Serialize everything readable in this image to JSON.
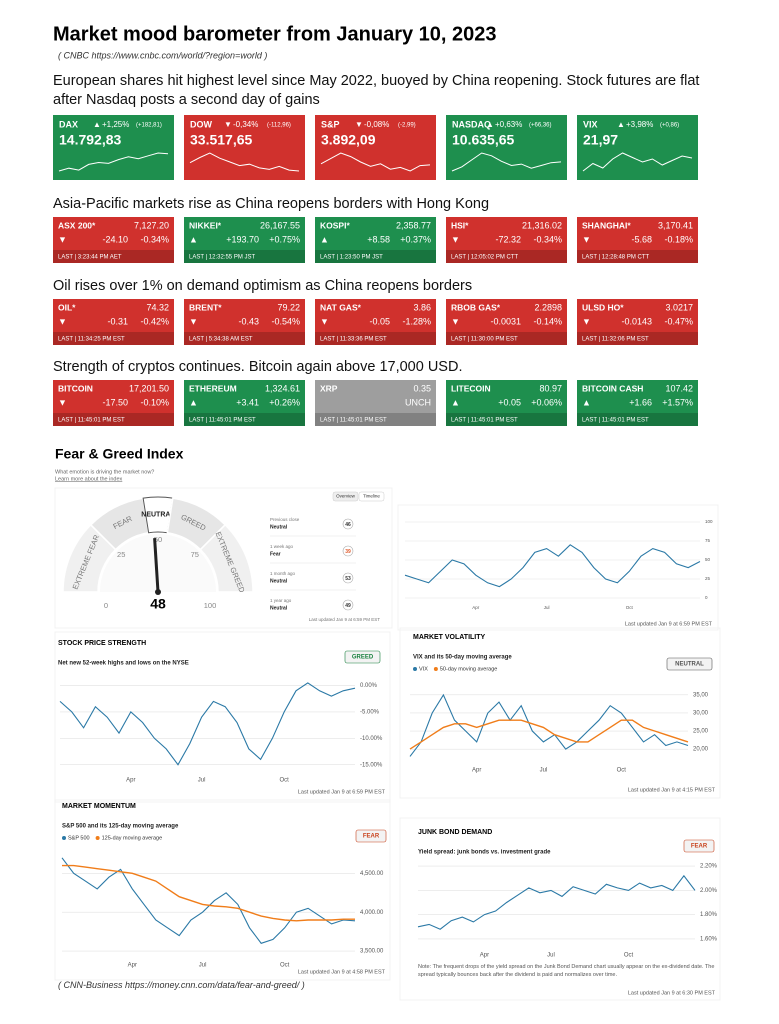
{
  "header": {
    "title": "Market mood barometer from January 10, 2023",
    "source": "( CNBC https://www.cnbc.com/world/?region=world )"
  },
  "sections": [
    {
      "heading": "European shares hit highest level since May 2022, buoyed by China reopening. Stock futures are flat after Nasdaq posts a second day of gains",
      "tiles": [
        {
          "name": "DAX",
          "arrow": "▲",
          "pct": "+1,25%",
          "change": "(+182,81)",
          "price": "14.792,83",
          "color": "#1e8f4e",
          "spark": [
            14610,
            14640,
            14620,
            14680,
            14700,
            14690,
            14730,
            14760,
            14740,
            14770,
            14800,
            14793
          ]
        },
        {
          "name": "DOW",
          "arrow": "▼",
          "pct": "-0,34%",
          "change": "(-112,96)",
          "price": "33.517,65",
          "color": "#d0312d",
          "spark": [
            33630,
            33700,
            33760,
            33690,
            33640,
            33590,
            33610,
            33560,
            33540,
            33580,
            33530,
            33518
          ]
        },
        {
          "name": "S&P",
          "arrow": "▼",
          "pct": "-0,08%",
          "change": "(-2,99)",
          "price": "3.892,09",
          "color": "#d0312d",
          "spark": [
            3895,
            3910,
            3925,
            3915,
            3900,
            3888,
            3895,
            3880,
            3885,
            3875,
            3890,
            3892
          ]
        },
        {
          "name": "NASDAQ",
          "arrow": "▲",
          "pct": "+0,63%",
          "change": "(+66,36)",
          "price": "10.635,65",
          "color": "#1e8f4e",
          "spark": [
            10570,
            10600,
            10650,
            10700,
            10680,
            10640,
            10610,
            10620,
            10590,
            10610,
            10630,
            10636
          ]
        },
        {
          "name": "VIX",
          "arrow": "▲",
          "pct": "+3,98%",
          "change": "(+0,86)",
          "price": "21,97",
          "color": "#1e8f4e",
          "spark": [
            21.1,
            21.6,
            21.3,
            21.9,
            22.3,
            22.0,
            21.7,
            21.9,
            21.5,
            21.8,
            22.1,
            21.97
          ]
        }
      ]
    },
    {
      "heading": "Asia-Pacific markets rise as China reopens borders with Hong Kong",
      "tiles": [
        {
          "name": "ASX 200*",
          "price": "7,127.20",
          "arrow": "▼",
          "change": "-24.10",
          "pct": "-0.34%",
          "last": "LAST | 3:23:44 PM AET",
          "color": "#d0312d"
        },
        {
          "name": "NIKKEI*",
          "price": "26,167.55",
          "arrow": "▲",
          "change": "+193.70",
          "pct": "+0.75%",
          "last": "LAST | 12:32:55 PM JST",
          "color": "#1e8f4e"
        },
        {
          "name": "KOSPI*",
          "price": "2,358.77",
          "arrow": "▲",
          "change": "+8.58",
          "pct": "+0.37%",
          "last": "LAST | 1:23:50 PM JST",
          "color": "#1e8f4e"
        },
        {
          "name": "HSI*",
          "price": "21,316.02",
          "arrow": "▼",
          "change": "-72.32",
          "pct": "-0.34%",
          "last": "LAST | 12:05:02 PM CTT",
          "color": "#d0312d"
        },
        {
          "name": "SHANGHAI*",
          "price": "3,170.41",
          "arrow": "▼",
          "change": "-5.68",
          "pct": "-0.18%",
          "last": "LAST | 12:28:48 PM CTT",
          "color": "#d0312d"
        }
      ]
    },
    {
      "heading": "Oil rises over 1% on demand optimism as China reopens borders",
      "tiles": [
        {
          "name": "OIL*",
          "price": "74.32",
          "arrow": "▼",
          "change": "-0.31",
          "pct": "-0.42%",
          "last": "LAST | 11:34:25 PM EST",
          "color": "#d0312d"
        },
        {
          "name": "BRENT*",
          "price": "79.22",
          "arrow": "▼",
          "change": "-0.43",
          "pct": "-0.54%",
          "last": "LAST | 5:34:38 AM EST",
          "color": "#d0312d"
        },
        {
          "name": "NAT GAS*",
          "price": "3.86",
          "arrow": "▼",
          "change": "-0.05",
          "pct": "-1.28%",
          "last": "LAST | 11:33:36 PM EST",
          "color": "#d0312d"
        },
        {
          "name": "RBOB GAS*",
          "price": "2.2898",
          "arrow": "▼",
          "change": "-0.0031",
          "pct": "-0.14%",
          "last": "LAST | 11:30:00 PM EST",
          "color": "#d0312d"
        },
        {
          "name": "ULSD HO*",
          "price": "3.0217",
          "arrow": "▼",
          "change": "-0.0143",
          "pct": "-0.47%",
          "last": "LAST | 11:32:06 PM EST",
          "color": "#d0312d"
        }
      ]
    },
    {
      "heading": "Strength of cryptos continues. Bitcoin again above 17,000 USD.",
      "tiles": [
        {
          "name": "BITCOIN",
          "price": "17,201.50",
          "arrow": "▼",
          "change": "-17.50",
          "pct": "-0.10%",
          "last": "LAST | 11:45:01 PM EST",
          "color": "#d0312d"
        },
        {
          "name": "ETHEREUM",
          "price": "1,324.61",
          "arrow": "▲",
          "change": "+3.41",
          "pct": "+0.26%",
          "last": "LAST | 11:45:01 PM EST",
          "color": "#1e8f4e"
        },
        {
          "name": "XRP",
          "price": "0.35",
          "pct": "UNCH",
          "last": "LAST | 11:45:01 PM EST",
          "color": "#9e9e9e"
        },
        {
          "name": "LITECOIN",
          "price": "80.97",
          "arrow": "▲",
          "change": "+0.05",
          "pct": "+0.06%",
          "last": "LAST | 11:45:01 PM EST",
          "color": "#1e8f4e"
        },
        {
          "name": "BITCOIN CASH",
          "price": "107.42",
          "arrow": "▲",
          "change": "+1.66",
          "pct": "+1.57%",
          "last": "LAST | 11:45:01 PM EST",
          "color": "#1e8f4e"
        }
      ]
    }
  ],
  "fear_greed": {
    "title": "Fear & Greed Index",
    "question": "What emotion is driving the market now?",
    "learn_more": "Learn more about the index",
    "tabs": [
      "Overview",
      "Timeline"
    ],
    "gauge": {
      "labels": [
        "EXTREME FEAR",
        "FEAR",
        "NEUTRAL",
        "GREED",
        "EXTREME GREED"
      ],
      "ticks": [
        0,
        25,
        50,
        75,
        100
      ],
      "value": 48
    },
    "history": [
      {
        "label": "Previous close",
        "rating": "Neutral",
        "value": 46
      },
      {
        "label": "1 week ago",
        "rating": "Fear",
        "value": 39
      },
      {
        "label": "1 month ago",
        "rating": "Neutral",
        "value": 53
      },
      {
        "label": "1 year ago",
        "rating": "Neutral",
        "value": 49
      }
    ],
    "updated": "Last updated Jan 9 at 6:59 PM EST",
    "timeline": {
      "type": "line",
      "categories": [
        null,
        null,
        null,
        null,
        null,
        null,
        "Apr",
        null,
        null,
        null,
        null,
        null,
        "Jul",
        null,
        null,
        null,
        null,
        null,
        null,
        "Oct",
        null,
        null,
        null,
        null,
        null,
        null
      ],
      "series": [
        {
          "color": "#2b79a6",
          "values": [
            30,
            25,
            20,
            35,
            50,
            45,
            30,
            20,
            15,
            25,
            40,
            60,
            65,
            55,
            70,
            60,
            40,
            25,
            20,
            35,
            55,
            65,
            60,
            45,
            40,
            48
          ]
        }
      ],
      "ylim": [
        0,
        100
      ],
      "yticks": [
        0,
        25,
        50,
        75,
        100
      ],
      "updated": "Last updated Jan 9 at 6:59 PM EST"
    }
  },
  "indicators": [
    {
      "type": "line",
      "title": "STOCK PRICE STRENGTH",
      "subtitle": "Net new 52-week highs and lows on the NYSE",
      "badge": "GREED",
      "badge_color": "#17803d",
      "categories": [
        null,
        null,
        null,
        null,
        null,
        null,
        "Apr",
        null,
        null,
        null,
        null,
        null,
        "Jul",
        null,
        null,
        null,
        null,
        null,
        null,
        "Oct",
        null,
        null,
        null,
        null,
        null,
        null
      ],
      "series": [
        {
          "color": "#2b79a6",
          "values": [
            -3,
            -5,
            -8,
            -4,
            -6,
            -9,
            -5,
            -7,
            -10,
            -12,
            -15,
            -11,
            -6,
            -3,
            -4,
            -7,
            -12,
            -14,
            -10,
            -5,
            -1,
            0.5,
            -1,
            -2,
            -1,
            -0.5
          ]
        }
      ],
      "ylim": [
        -16,
        2
      ],
      "yticks": [
        {
          "value": 0,
          "label": "0.00%"
        },
        {
          "value": -5,
          "label": "-5.00%"
        },
        {
          "value": -10,
          "label": "-10.00%"
        },
        {
          "value": -15,
          "label": "-15.00%"
        }
      ],
      "updated": "Last updated Jan 9 at 6:59 PM EST"
    },
    {
      "type": "line",
      "title": "MARKET VOLATILITY",
      "subtitle": "VIX and its 50-day moving average",
      "badge": "NEUTRAL",
      "badge_color": "#555555",
      "categories": [
        null,
        null,
        null,
        null,
        null,
        null,
        "Apr",
        null,
        null,
        null,
        null,
        null,
        "Jul",
        null,
        null,
        null,
        null,
        null,
        null,
        "Oct",
        null,
        null,
        null,
        null,
        null,
        null
      ],
      "series": [
        {
          "name": "VIX",
          "color": "#2b79a6",
          "values": [
            18,
            22,
            30,
            35,
            28,
            25,
            22,
            30,
            33,
            28,
            32,
            25,
            22,
            24,
            20,
            22,
            25,
            28,
            32,
            30,
            26,
            22,
            24,
            21,
            22,
            21
          ]
        },
        {
          "name": "50-day moving average",
          "color": "#f07d1a",
          "values": [
            20,
            22,
            24,
            26,
            27,
            27,
            26,
            27,
            28,
            28,
            28,
            27,
            26,
            24,
            23,
            22,
            22,
            24,
            26,
            28,
            28,
            26,
            25,
            24,
            23,
            22
          ]
        }
      ],
      "ylim": [
        17,
        38
      ],
      "yticks": [
        {
          "value": 20,
          "label": "20,00"
        },
        {
          "value": 25,
          "label": "25,00"
        },
        {
          "value": 30,
          "label": "30,00"
        },
        {
          "value": 35,
          "label": "35,00"
        }
      ],
      "updated": "Last updated Jan 9 at 4:15 PM EST"
    },
    {
      "type": "line",
      "title": "MARKET MOMENTUM",
      "subtitle": "S&P 500 and its 125-day moving average",
      "badge": "FEAR",
      "badge_color": "#c8421c",
      "categories": [
        null,
        null,
        null,
        null,
        null,
        null,
        "Apr",
        null,
        null,
        null,
        null,
        null,
        "Jul",
        null,
        null,
        null,
        null,
        null,
        null,
        "Oct",
        null,
        null,
        null,
        null,
        null,
        null
      ],
      "series": [
        {
          "name": "S&P 500",
          "color": "#2b79a6",
          "values": [
            4700,
            4500,
            4400,
            4300,
            4450,
            4550,
            4300,
            4100,
            3900,
            3800,
            3700,
            3900,
            4000,
            4150,
            4250,
            4100,
            3800,
            3600,
            3650,
            3800,
            4000,
            4050,
            3950,
            3850,
            3900,
            3890
          ]
        },
        {
          "name": "125-day moving average",
          "color": "#f07d1a",
          "values": [
            4600,
            4600,
            4580,
            4560,
            4540,
            4520,
            4500,
            4450,
            4400,
            4300,
            4200,
            4150,
            4100,
            4080,
            4070,
            4050,
            4000,
            3950,
            3920,
            3900,
            3890,
            3900,
            3900,
            3900,
            3910,
            3910
          ]
        }
      ],
      "ylim": [
        3450,
        4800
      ],
      "yticks": [
        {
          "value": 3500,
          "label": "3,500.00"
        },
        {
          "value": 4000,
          "label": "4,000.00"
        },
        {
          "value": 4500,
          "label": "4,500.00"
        }
      ],
      "updated": "Last updated Jan 9 at 4:58 PM EST"
    },
    {
      "type": "line",
      "title": "JUNK BOND DEMAND",
      "subtitle": "Yield spread: junk bonds vs. investment grade",
      "badge": "FEAR",
      "badge_color": "#c8421c",
      "categories": [
        null,
        null,
        null,
        null,
        null,
        null,
        "Apr",
        null,
        null,
        null,
        null,
        null,
        "Jul",
        null,
        null,
        null,
        null,
        null,
        null,
        "Oct",
        null,
        null,
        null,
        null,
        null,
        null
      ],
      "series": [
        {
          "color": "#2b79a6",
          "values": [
            1.7,
            1.72,
            1.68,
            1.75,
            1.78,
            1.74,
            1.8,
            1.83,
            1.9,
            1.96,
            2.02,
            1.98,
            2.0,
            1.95,
            2.03,
            2.0,
            1.97,
            2.05,
            2.02,
            2.0,
            2.06,
            2.02,
            2.04,
            2.0,
            2.12,
            2.0
          ]
        }
      ],
      "ylim": [
        1.55,
        2.25
      ],
      "yticks": [
        {
          "value": 1.6,
          "label": "1.60%"
        },
        {
          "value": 1.8,
          "label": "1.80%"
        },
        {
          "value": 2.0,
          "label": "2.00%"
        },
        {
          "value": 2.2,
          "label": "2.20%"
        }
      ],
      "note": "Note: The frequent drops of the yield spread on the Junk Bond Demand chart usually appear on the ex-dividend date. The spread typically bounces back after the dividend is paid and normalizes over time.",
      "updated": "Last updated Jan 9 at 6:30 PM EST"
    }
  ],
  "footer": "( CNN-Business https://money.cnn.com/data/fear-and-greed/ )"
}
